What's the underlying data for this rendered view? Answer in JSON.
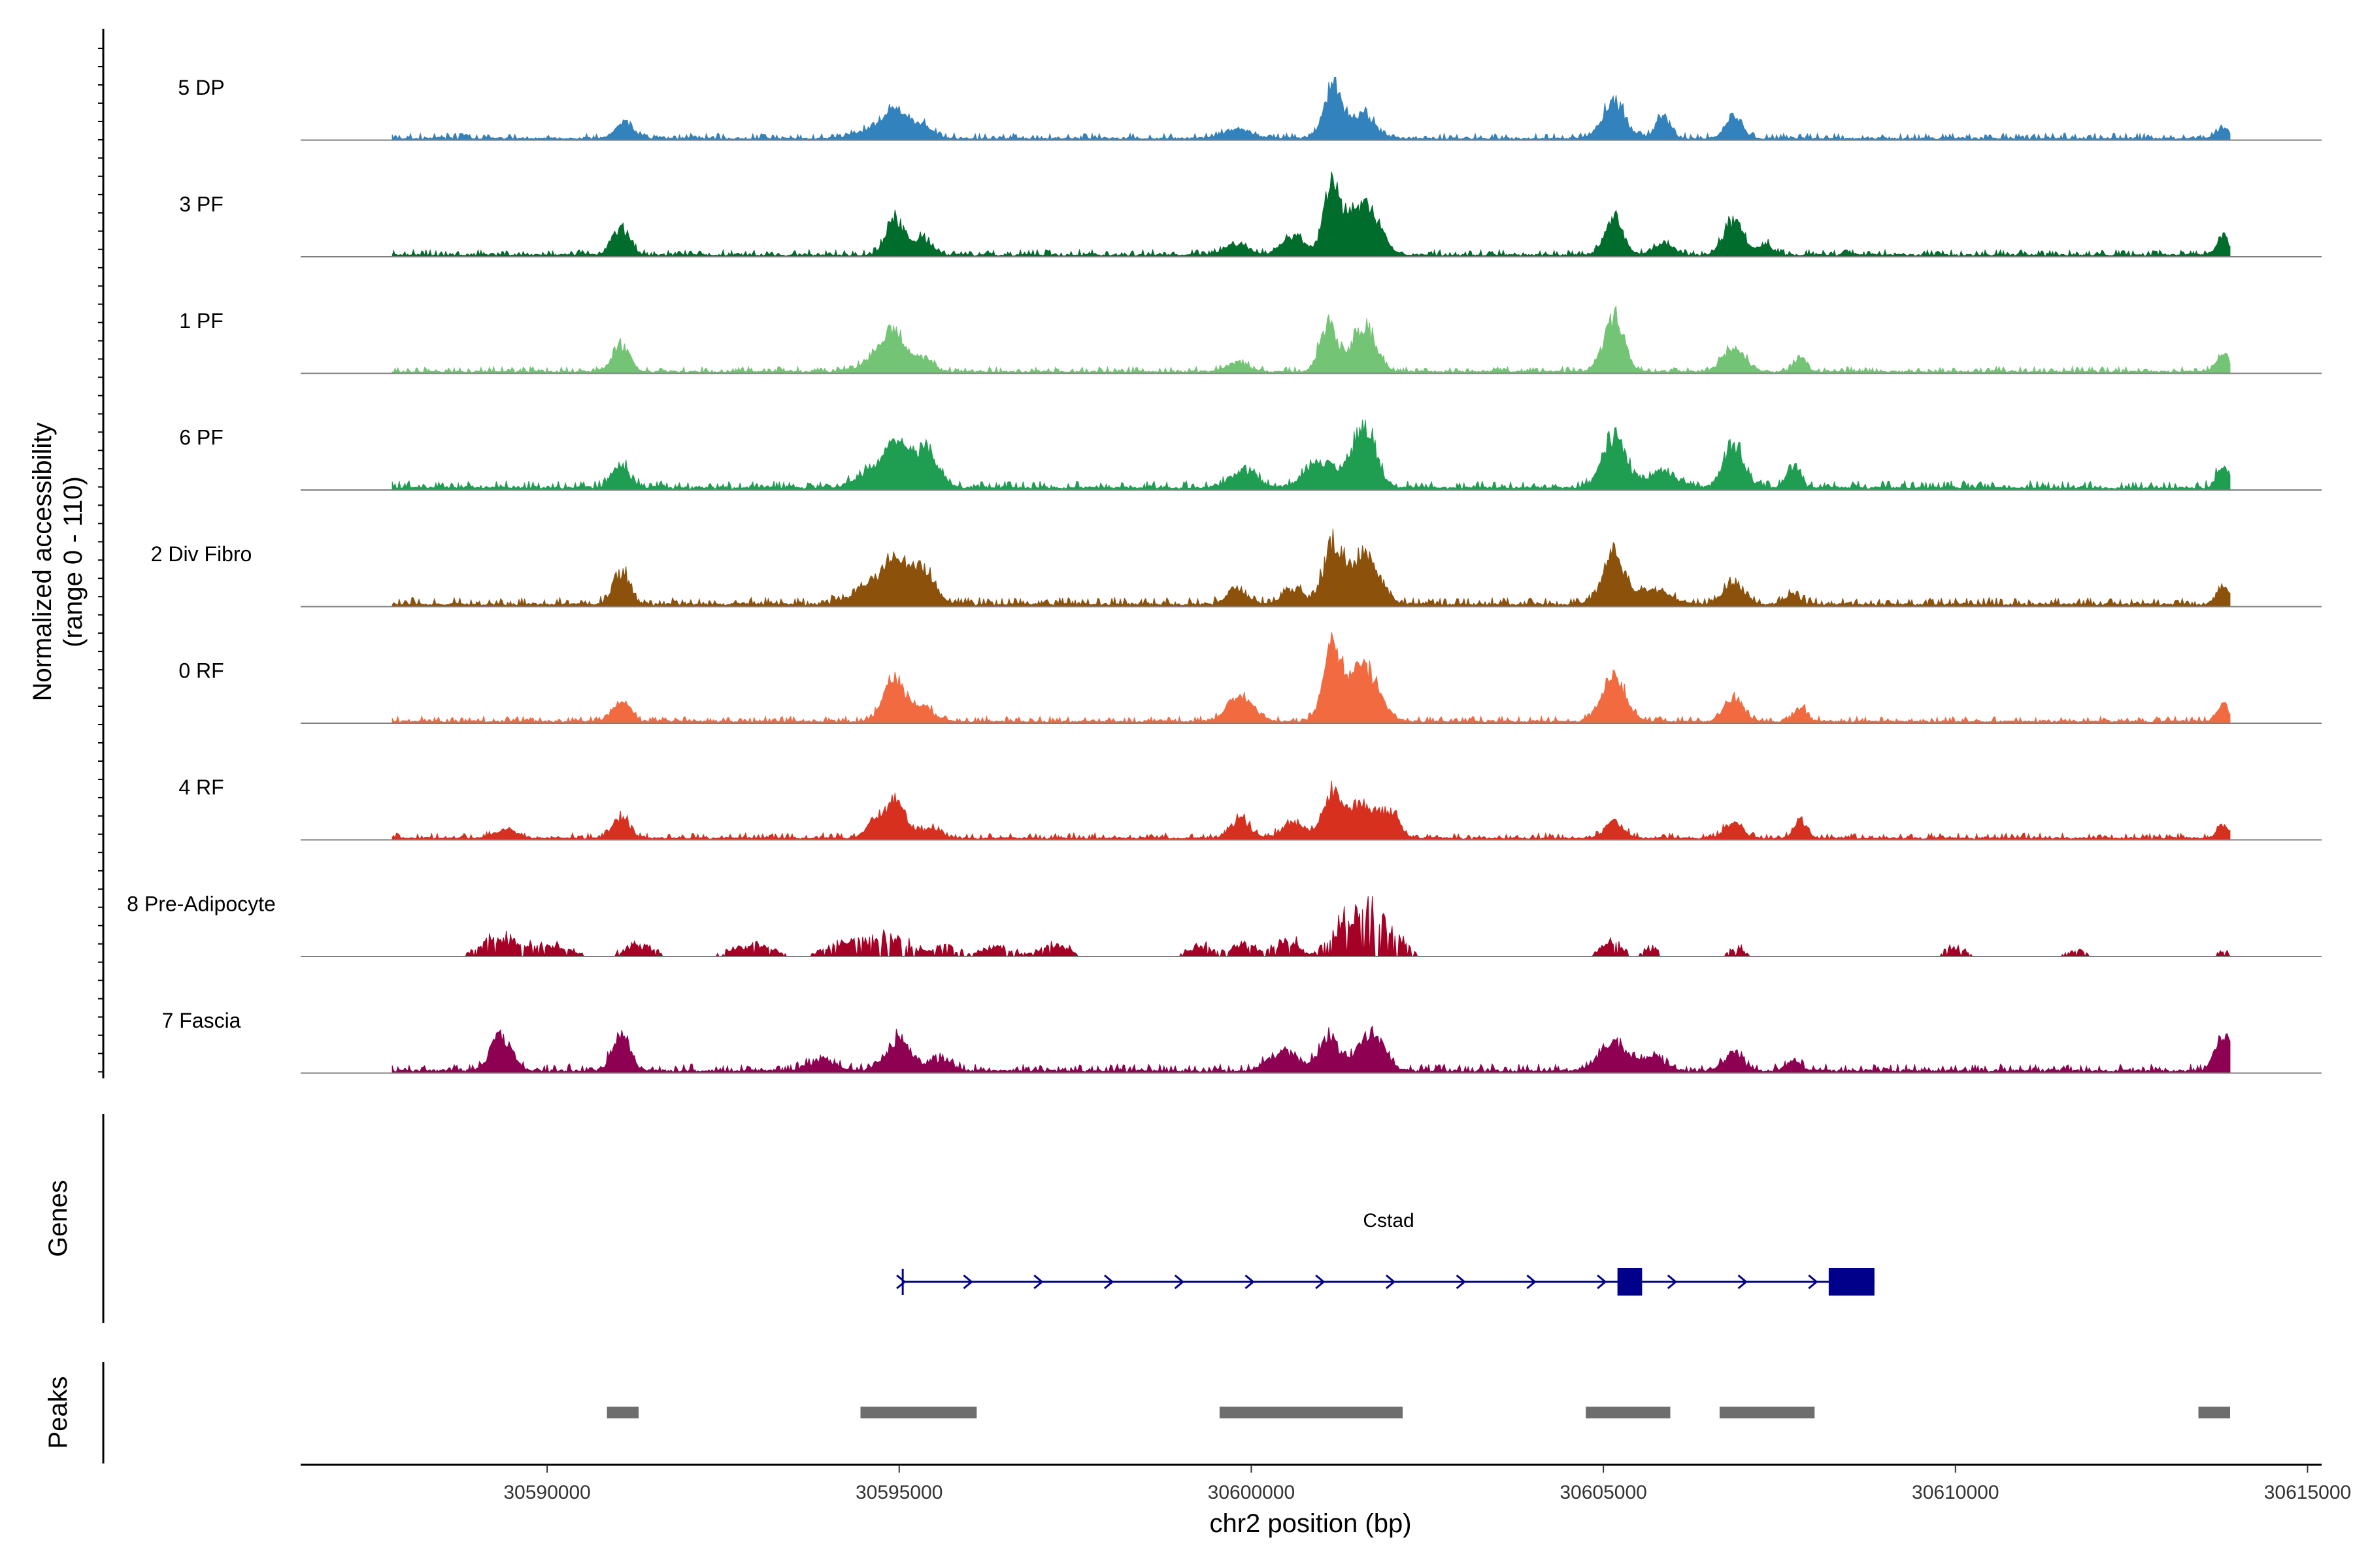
{
  "chart_data": {
    "type": "area",
    "title": "",
    "ylabel": "Normalized accessibility",
    "ylabel_range": "(range 0 - 110)",
    "xlabel": "chr2 position (bp)",
    "xlim": [
      30586500,
      30615200
    ],
    "ylim": [
      0,
      110
    ],
    "x_ticks": [
      30590000,
      30595000,
      30600000,
      30605000,
      30610000,
      30615000
    ],
    "x_tick_labels": [
      "30590000",
      "30595000",
      "30600000",
      "30605000",
      "30610000",
      "30615000"
    ],
    "data_range": [
      30587800,
      30613900
    ],
    "series": [
      {
        "name": "5 DP",
        "color": "#3182BD",
        "noise": 3,
        "scale": 1.0,
        "peaks": [
          [
            30591100,
            14,
            130
          ],
          [
            30594700,
            10,
            260
          ],
          [
            30594950,
            20,
            140
          ],
          [
            30595300,
            12,
            160
          ],
          [
            30599800,
            8,
            200
          ],
          [
            30601150,
            46,
            120
          ],
          [
            30601550,
            22,
            180
          ],
          [
            30605150,
            34,
            160
          ],
          [
            30605850,
            20,
            100
          ],
          [
            30606850,
            20,
            120
          ],
          [
            30613800,
            10,
            80
          ]
        ]
      },
      {
        "name": "3 PF",
        "color": "#006D2C",
        "noise": 3,
        "scale": 1.0,
        "peaks": [
          [
            30591050,
            25,
            120
          ],
          [
            30594950,
            32,
            130
          ],
          [
            30595350,
            14,
            130
          ],
          [
            30599800,
            10,
            160
          ],
          [
            30600600,
            16,
            160
          ],
          [
            30601150,
            60,
            120
          ],
          [
            30601600,
            50,
            200
          ],
          [
            30605150,
            35,
            130
          ],
          [
            30605850,
            10,
            150
          ],
          [
            30606850,
            30,
            140
          ],
          [
            30607300,
            10,
            100
          ],
          [
            30613800,
            18,
            80
          ]
        ]
      },
      {
        "name": "1 PF",
        "color": "#74C476",
        "noise": 3,
        "scale": 1.0,
        "peaks": [
          [
            30591050,
            25,
            120
          ],
          [
            30594700,
            14,
            200
          ],
          [
            30594950,
            32,
            150
          ],
          [
            30595350,
            12,
            120
          ],
          [
            30599800,
            8,
            150
          ],
          [
            30601100,
            46,
            120
          ],
          [
            30601600,
            42,
            160
          ],
          [
            30605150,
            50,
            140
          ],
          [
            30606850,
            20,
            160
          ],
          [
            30607800,
            12,
            90
          ],
          [
            30613800,
            18,
            90
          ]
        ]
      },
      {
        "name": "6 PF",
        "color": "#1F9E52",
        "noise": 4,
        "scale": 1.0,
        "peaks": [
          [
            30591050,
            20,
            120
          ],
          [
            30594700,
            16,
            260
          ],
          [
            30594950,
            30,
            150
          ],
          [
            30595350,
            34,
            180
          ],
          [
            30599900,
            14,
            200
          ],
          [
            30601000,
            24,
            220
          ],
          [
            30601600,
            54,
            160
          ],
          [
            30605150,
            48,
            160
          ],
          [
            30605850,
            14,
            200
          ],
          [
            30606850,
            40,
            140
          ],
          [
            30607700,
            20,
            90
          ],
          [
            30613800,
            20,
            90
          ]
        ]
      },
      {
        "name": "2 Div Fibro",
        "color": "#8C510A",
        "noise": 4,
        "scale": 1.0,
        "peaks": [
          [
            30591050,
            28,
            120
          ],
          [
            30594600,
            16,
            260
          ],
          [
            30594950,
            34,
            180
          ],
          [
            30595350,
            30,
            160
          ],
          [
            30599800,
            14,
            140
          ],
          [
            30600600,
            14,
            140
          ],
          [
            30601150,
            50,
            130
          ],
          [
            30601600,
            45,
            200
          ],
          [
            30605150,
            46,
            150
          ],
          [
            30605700,
            14,
            220
          ],
          [
            30606850,
            20,
            140
          ],
          [
            30607700,
            10,
            90
          ],
          [
            30613800,
            16,
            90
          ]
        ]
      },
      {
        "name": "0 RF",
        "color": "#F16A40",
        "noise": 3,
        "scale": 1.0,
        "peaks": [
          [
            30591050,
            20,
            120
          ],
          [
            30594950,
            38,
            160
          ],
          [
            30595350,
            12,
            140
          ],
          [
            30599850,
            24,
            180
          ],
          [
            30601150,
            64,
            130
          ],
          [
            30601600,
            50,
            200
          ],
          [
            30605150,
            40,
            170
          ],
          [
            30606850,
            22,
            130
          ],
          [
            30607800,
            12,
            90
          ],
          [
            30613800,
            16,
            80
          ]
        ]
      },
      {
        "name": "4 RF",
        "color": "#D7301F",
        "noise": 3,
        "scale": 1.0,
        "peaks": [
          [
            30589400,
            8,
            150
          ],
          [
            30591050,
            18,
            120
          ],
          [
            30594650,
            14,
            120
          ],
          [
            30594950,
            34,
            140
          ],
          [
            30595450,
            10,
            130
          ],
          [
            30599850,
            16,
            140
          ],
          [
            30600600,
            14,
            160
          ],
          [
            30601150,
            44,
            130
          ],
          [
            30601550,
            30,
            160
          ],
          [
            30601950,
            24,
            140
          ],
          [
            30605150,
            14,
            130
          ],
          [
            30606850,
            14,
            130
          ],
          [
            30607800,
            14,
            90
          ],
          [
            30613800,
            12,
            80
          ]
        ]
      },
      {
        "name": "8 Pre-Adipocyte",
        "color": "#A50026",
        "noise": 0,
        "scale": 1.0,
        "sparse": true,
        "peaks": [
          [
            30589300,
            18,
            250
          ],
          [
            30590000,
            12,
            300
          ],
          [
            30591300,
            12,
            200
          ],
          [
            30592900,
            10,
            300
          ],
          [
            30594200,
            14,
            250
          ],
          [
            30594900,
            18,
            300
          ],
          [
            30595700,
            10,
            150
          ],
          [
            30596400,
            12,
            200
          ],
          [
            30597200,
            12,
            200
          ],
          [
            30599300,
            10,
            200
          ],
          [
            30599900,
            14,
            150
          ],
          [
            30600500,
            20,
            150
          ],
          [
            30601300,
            28,
            200
          ],
          [
            30601700,
            40,
            200
          ],
          [
            30602100,
            14,
            150
          ],
          [
            30605100,
            16,
            150
          ],
          [
            30605700,
            8,
            120
          ],
          [
            30606900,
            8,
            120
          ],
          [
            30610000,
            8,
            150
          ],
          [
            30611700,
            6,
            150
          ],
          [
            30613800,
            6,
            80
          ]
        ]
      },
      {
        "name": "7 Fascia",
        "color": "#8E0152",
        "noise": 4,
        "scale": 1.0,
        "peaks": [
          [
            30589350,
            32,
            150
          ],
          [
            30591050,
            34,
            120
          ],
          [
            30593900,
            10,
            200
          ],
          [
            30595000,
            28,
            180
          ],
          [
            30595600,
            10,
            150
          ],
          [
            30600450,
            16,
            200
          ],
          [
            30601100,
            28,
            150
          ],
          [
            30601700,
            34,
            180
          ],
          [
            30605150,
            24,
            200
          ],
          [
            30605700,
            12,
            160
          ],
          [
            30606850,
            16,
            140
          ],
          [
            30607700,
            10,
            100
          ],
          [
            30613800,
            28,
            120
          ]
        ]
      }
    ],
    "genes": [
      {
        "name": "Cstad",
        "strand": "+",
        "start": 30595050,
        "end": 30608850,
        "exons": [
          [
            30605200,
            30605550
          ],
          [
            30608200,
            30608850
          ]
        ],
        "arrows": [
          30595050,
          30596000,
          30597000,
          30598000,
          30599000,
          30600000,
          30601000,
          30602000,
          30603000,
          30604000,
          30605000,
          30606000,
          30607000,
          30608000
        ]
      }
    ],
    "peaks_track": [
      [
        30590850,
        30591300
      ],
      [
        30594450,
        30596100
      ],
      [
        30599550,
        30602150
      ],
      [
        30604750,
        30605950
      ],
      [
        30606650,
        30608000
      ],
      [
        30613450,
        30613900
      ]
    ],
    "panel_labels": {
      "genes": "Genes",
      "peaks": "Peaks"
    }
  }
}
